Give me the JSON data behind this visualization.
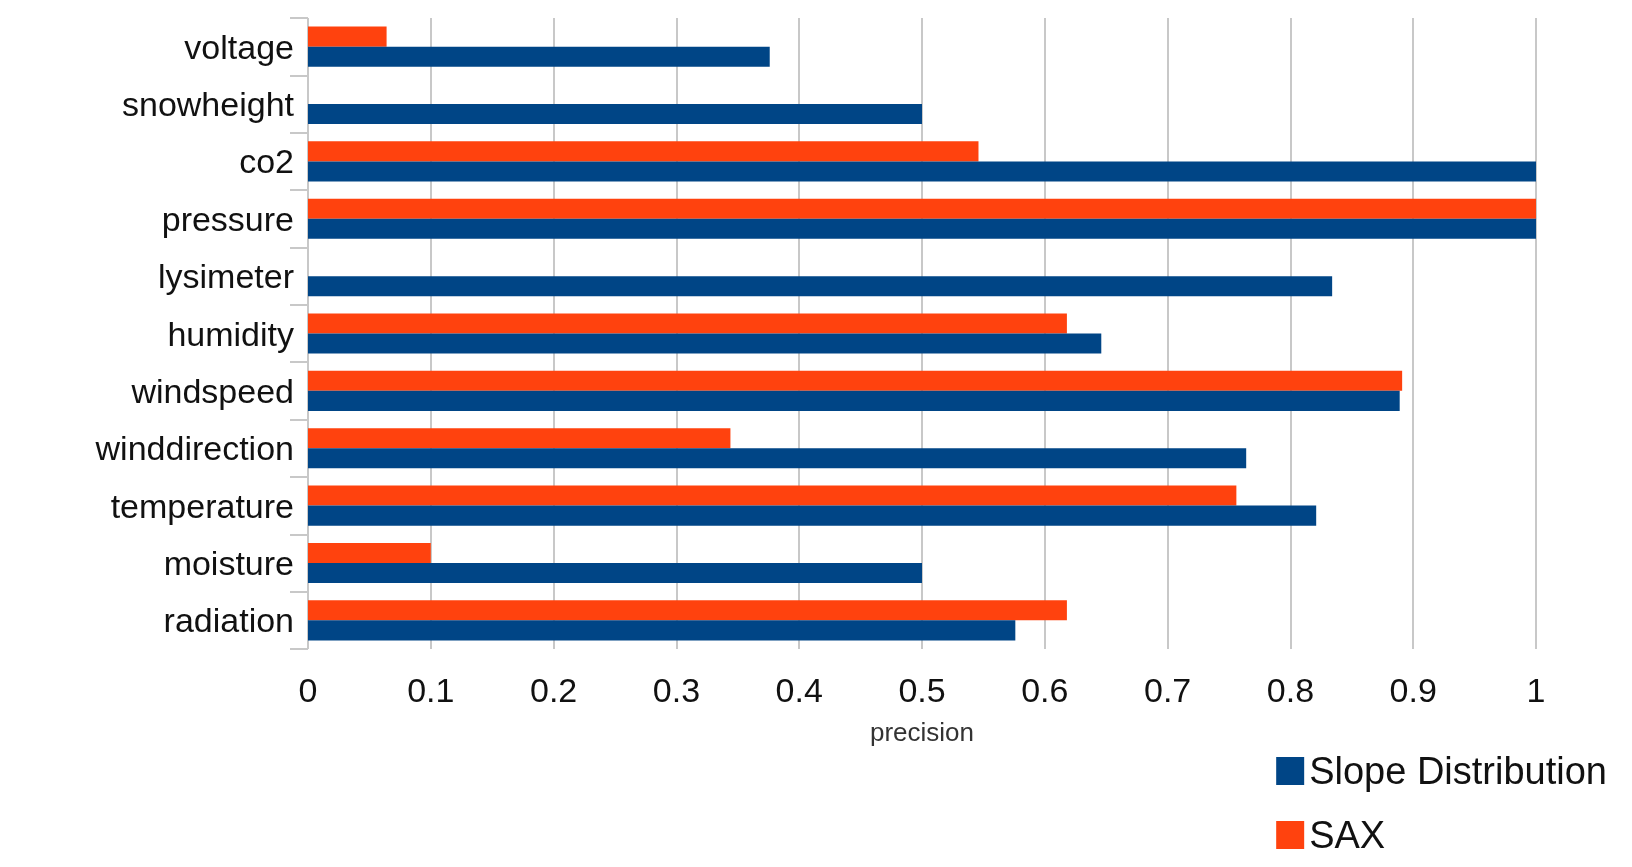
{
  "chart_data": {
    "type": "bar",
    "orientation": "horizontal",
    "xlabel": "precision",
    "categories": [
      "voltage",
      "snowheight",
      "co2",
      "pressure",
      "lysimeter",
      "humidity",
      "windspeed",
      "winddirection",
      "temperature",
      "moisture",
      "radiation"
    ],
    "series": [
      {
        "name": "Slope Distribution",
        "color": "#004586",
        "values": [
          0.376,
          0.5,
          1,
          1,
          0.834,
          0.646,
          0.889,
          0.764,
          0.821,
          0.5,
          0.576
        ]
      },
      {
        "name": "SAX",
        "color": "#ff420e",
        "values": [
          0.064,
          null,
          0.546,
          1,
          null,
          0.618,
          0.891,
          0.344,
          0.756,
          0.1,
          0.618
        ]
      }
    ],
    "xlim": [
      0,
      1
    ],
    "xticks": [
      0,
      0.1,
      0.2,
      0.3,
      0.4,
      0.5,
      0.6,
      0.7,
      0.8,
      0.9,
      1
    ],
    "grid": "x",
    "legend": "bottom right"
  }
}
